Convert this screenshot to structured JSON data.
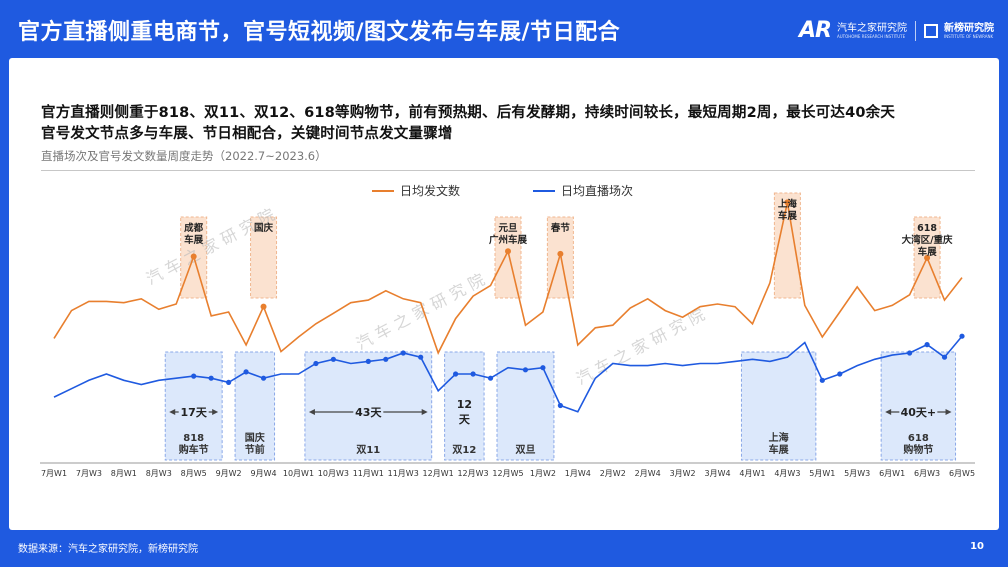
{
  "header": {
    "title": "官方直播侧重电商节，官号短视频/图文发布与车展/节日配合"
  },
  "brand": {
    "logo": "AR",
    "name": "汽车之家研究院",
    "tagline": "AUTOHOME RESEARCH INSTITUTE",
    "partner": "新榜研究院",
    "partner_en": "INSTITUTE OF NEWRANK"
  },
  "headline": {
    "line1": "官方直播则侧重于818、双11、双12、618等购物节，前有预热期、后有发酵期，持续时间较长，最短周期2周，最长可达40余天",
    "line2": "官号发文节点多与车展、节日相配合，关键时间节点发文量骤增"
  },
  "chart_subtitle": "直播场次及官号发文数量周度走势（2022.7~2023.6）",
  "watermark": "汽 车 之 家 研 究 院",
  "footer": {
    "source": "数据来源：汽车之家研究院，新榜研究院",
    "page": "10"
  },
  "colors": {
    "header_bg": "#1f5ae0",
    "orange": "#e87f2e",
    "blue": "#1f5ae0",
    "orange_band": "#fbe2d0",
    "blue_band": "#dce8fb"
  },
  "chart_data": {
    "type": "line",
    "x": [
      "7月W1",
      "7月W2",
      "7月W3",
      "7月W4",
      "8月W1",
      "8月W2",
      "8月W3",
      "8月W4",
      "8月W5",
      "9月W1",
      "9月W2",
      "9月W3",
      "9月W4",
      "10月W0",
      "10月W1",
      "10月W2",
      "10月W3",
      "10月W4",
      "11月W1",
      "11月W2",
      "11月W3",
      "11月W4",
      "12月W1",
      "12月W2",
      "12月W3",
      "12月W4",
      "12月W5",
      "1月W1",
      "1月W2",
      "1月W3",
      "1月W4",
      "1月W5",
      "2月W1",
      "2月W2",
      "2月W3",
      "2月W4",
      "3月W1",
      "3月W2",
      "3月W3",
      "3月W4",
      "4月W1",
      "4月W2",
      "4月W3",
      "4月W4",
      "5月W1",
      "5月W2",
      "5月W3",
      "5月W4",
      "6月W1",
      "6月W2",
      "6月W3",
      "6月W4",
      "6月W5"
    ],
    "x_tick_labels": [
      "7月W1",
      "7月W3",
      "8月W1",
      "8月W3",
      "8月W5",
      "9月W2",
      "9月W4",
      "10月W1",
      "10月W3",
      "11月W1",
      "11月W3",
      "12月W1",
      "12月W3",
      "12月W5",
      "1月W2",
      "1月W4",
      "2月W2",
      "2月W4",
      "3月W2",
      "3月W4",
      "4月W1",
      "4月W3",
      "5月W1",
      "5月W3",
      "6月W1",
      "6月W3",
      "6月W5"
    ],
    "series": [
      {
        "name": "日均发文数",
        "color": "#e87f2e",
        "values": [
          27,
          48,
          55,
          55,
          54,
          57,
          49,
          53,
          89,
          44,
          47,
          22,
          51,
          17,
          28,
          38,
          46,
          54,
          56,
          63,
          57,
          54,
          16,
          42,
          59,
          67,
          93,
          37,
          47,
          91,
          22,
          35,
          37,
          50,
          57,
          48,
          43,
          51,
          53,
          51,
          38,
          69,
          130,
          52,
          28,
          47,
          66,
          48,
          52,
          60,
          88,
          56,
          73
        ],
        "markers": [
          8,
          12,
          26,
          29,
          42,
          50
        ]
      },
      {
        "name": "日均直播场次",
        "color": "#1f5ae0",
        "values": [
          19,
          23,
          27,
          30,
          27,
          25,
          27,
          28,
          29,
          28,
          26,
          31,
          28,
          30,
          30,
          35,
          37,
          35,
          36,
          37,
          40,
          38,
          22,
          30,
          30,
          28,
          33,
          32,
          33,
          15,
          12,
          28,
          35,
          34,
          34,
          35,
          34,
          35,
          35,
          36,
          37,
          36,
          38,
          45,
          27,
          30,
          34,
          37,
          39,
          40,
          44,
          38,
          48
        ],
        "markers": [
          8,
          9,
          10,
          11,
          12,
          15,
          16,
          18,
          19,
          20,
          21,
          23,
          24,
          25,
          27,
          28,
          29,
          44,
          45,
          49,
          50,
          51,
          52
        ]
      }
    ],
    "orange_annotations": [
      {
        "index": 8,
        "label": [
          "成都",
          "车展"
        ]
      },
      {
        "index": 12,
        "label": [
          "国庆"
        ]
      },
      {
        "index": 26,
        "label": [
          "元旦",
          "广州车展"
        ]
      },
      {
        "index": 29,
        "label": [
          "春节"
        ]
      },
      {
        "index": 42,
        "label": [
          "上海",
          "车展"
        ]
      },
      {
        "index": 50,
        "label": [
          "618",
          "大湾区/重庆",
          "车展"
        ]
      }
    ],
    "blue_periods": [
      {
        "start": 7,
        "end": 9,
        "duration": "17天",
        "label": [
          "818",
          "购车节"
        ]
      },
      {
        "start": 11,
        "end": 12,
        "duration": "",
        "label": [
          "国庆",
          "节前"
        ]
      },
      {
        "start": 15,
        "end": 21,
        "duration": "43天",
        "label": [
          "双11"
        ]
      },
      {
        "start": 23,
        "end": 24,
        "duration": "12天",
        "label": [
          "双12"
        ]
      },
      {
        "start": 26,
        "end": 28,
        "duration": "",
        "label": [
          "双旦"
        ]
      },
      {
        "start": 40,
        "end": 43,
        "duration": "",
        "label": [
          "上海",
          "车展"
        ]
      },
      {
        "start": 48,
        "end": 51,
        "duration": "40天+",
        "label": [
          "618",
          "购物节"
        ]
      }
    ]
  }
}
